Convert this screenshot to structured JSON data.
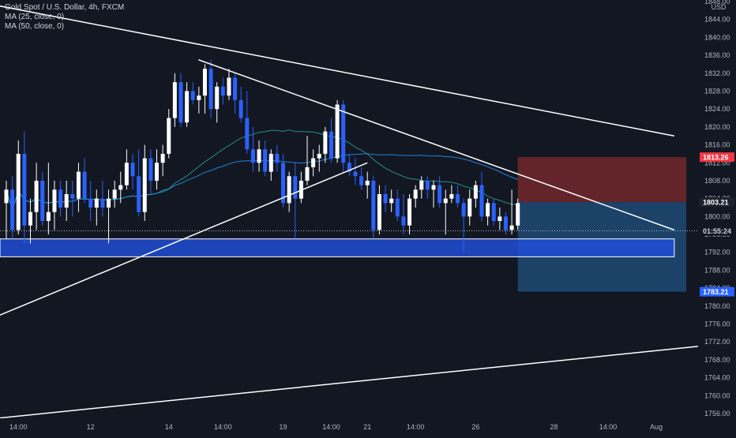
{
  "header": {
    "symbol_title": "Gold Spot / U.S. Dollar, 4h, FXCM",
    "indicators": [
      "MA (25, close, 0)",
      "MA (50, close, 0)"
    ]
  },
  "colors": {
    "background": "#131722",
    "bull_body": "#ffffff",
    "bear_body": "#2962ff",
    "ma25": "#26a69a",
    "ma50": "#2196f3",
    "trendline": "#ffffff",
    "zone_fill": "#2150e0",
    "stop_zone": "#7f2b2e",
    "target_zone": "#1f4e79",
    "price_tag_red": "#f23645",
    "price_tag_blue": "#2962ff",
    "price_tag_dark": "#1e222d"
  },
  "price_axis": {
    "currency": "USD",
    "ticks": [
      "1848.00",
      "1844.00",
      "1840.00",
      "1836.00",
      "1832.00",
      "1828.00",
      "1824.00",
      "1820.00",
      "1816.00",
      "1812.00",
      "1808.00",
      "1804.00",
      "1800.00",
      "1796.00",
      "1792.00",
      "1788.00",
      "1784.00",
      "1780.00",
      "1776.00",
      "1772.00",
      "1768.00",
      "1764.00",
      "1760.00",
      "1756.00"
    ],
    "tags": [
      {
        "label": "1813.26",
        "price": 1813.26,
        "style": "red"
      },
      {
        "label": "1803.21",
        "price": 1803.21,
        "style": "dark"
      },
      {
        "label": "01:55:24",
        "price": 1796.8,
        "style": "countdown"
      },
      {
        "label": "1783.21",
        "price": 1783.21,
        "style": "blue"
      }
    ]
  },
  "time_axis": {
    "ticks": [
      {
        "label": "14:00",
        "bar": 2
      },
      {
        "label": "12",
        "bar": 14
      },
      {
        "label": "14",
        "bar": 27
      },
      {
        "label": "14:00",
        "bar": 36
      },
      {
        "label": "19",
        "bar": 46
      },
      {
        "label": "14:00",
        "bar": 54
      },
      {
        "label": "21",
        "bar": 60
      },
      {
        "label": "14:00",
        "bar": 68
      },
      {
        "label": "26",
        "bar": 78
      },
      {
        "label": "28",
        "bar": 91
      },
      {
        "label": "14:00",
        "bar": 100
      },
      {
        "label": "Aug",
        "bar": 108
      }
    ]
  },
  "chart_data": {
    "type": "candlestick",
    "title": "Gold Spot / U.S. Dollar, 4h, FXCM",
    "ylim": [
      1754,
      1850
    ],
    "price_axis_unit": "USD",
    "last_price": 1803.21,
    "candles": [
      {
        "o": 1803,
        "h": 1808,
        "l": 1795,
        "c": 1806
      },
      {
        "o": 1806,
        "h": 1809,
        "l": 1795,
        "c": 1797
      },
      {
        "o": 1797,
        "h": 1817,
        "l": 1796,
        "c": 1814
      },
      {
        "o": 1814,
        "h": 1819,
        "l": 1794,
        "c": 1798
      },
      {
        "o": 1798,
        "h": 1804,
        "l": 1794,
        "c": 1801
      },
      {
        "o": 1801,
        "h": 1812,
        "l": 1797,
        "c": 1808
      },
      {
        "o": 1808,
        "h": 1810,
        "l": 1798,
        "c": 1799
      },
      {
        "o": 1799,
        "h": 1812,
        "l": 1796,
        "c": 1801
      },
      {
        "o": 1801,
        "h": 1808,
        "l": 1797,
        "c": 1806
      },
      {
        "o": 1806,
        "h": 1808,
        "l": 1800,
        "c": 1802
      },
      {
        "o": 1802,
        "h": 1808,
        "l": 1799,
        "c": 1805
      },
      {
        "o": 1805,
        "h": 1808,
        "l": 1800,
        "c": 1804
      },
      {
        "o": 1804,
        "h": 1812,
        "l": 1801,
        "c": 1810
      },
      {
        "o": 1810,
        "h": 1813,
        "l": 1803,
        "c": 1804
      },
      {
        "o": 1804,
        "h": 1808,
        "l": 1799,
        "c": 1802
      },
      {
        "o": 1802,
        "h": 1806,
        "l": 1798,
        "c": 1804
      },
      {
        "o": 1804,
        "h": 1808,
        "l": 1800,
        "c": 1802
      },
      {
        "o": 1802,
        "h": 1806,
        "l": 1794,
        "c": 1804
      },
      {
        "o": 1804,
        "h": 1808,
        "l": 1802,
        "c": 1806
      },
      {
        "o": 1806,
        "h": 1810,
        "l": 1803,
        "c": 1807
      },
      {
        "o": 1807,
        "h": 1815,
        "l": 1806,
        "c": 1812
      },
      {
        "o": 1812,
        "h": 1814,
        "l": 1806,
        "c": 1809
      },
      {
        "o": 1809,
        "h": 1815,
        "l": 1800,
        "c": 1801
      },
      {
        "o": 1801,
        "h": 1816,
        "l": 1799,
        "c": 1813
      },
      {
        "o": 1813,
        "h": 1815,
        "l": 1805,
        "c": 1808
      },
      {
        "o": 1808,
        "h": 1815,
        "l": 1806,
        "c": 1812
      },
      {
        "o": 1812,
        "h": 1816,
        "l": 1809,
        "c": 1814
      },
      {
        "o": 1814,
        "h": 1824,
        "l": 1813,
        "c": 1822
      },
      {
        "o": 1822,
        "h": 1832,
        "l": 1820,
        "c": 1830
      },
      {
        "o": 1830,
        "h": 1832,
        "l": 1820,
        "c": 1821
      },
      {
        "o": 1821,
        "h": 1830,
        "l": 1820,
        "c": 1828
      },
      {
        "o": 1828,
        "h": 1830,
        "l": 1825,
        "c": 1826
      },
      {
        "o": 1826,
        "h": 1829,
        "l": 1823,
        "c": 1827
      },
      {
        "o": 1827,
        "h": 1834,
        "l": 1823,
        "c": 1833
      },
      {
        "o": 1833,
        "h": 1835,
        "l": 1822,
        "c": 1824
      },
      {
        "o": 1824,
        "h": 1830,
        "l": 1821,
        "c": 1829
      },
      {
        "o": 1829,
        "h": 1831,
        "l": 1825,
        "c": 1827
      },
      {
        "o": 1827,
        "h": 1833,
        "l": 1826,
        "c": 1831
      },
      {
        "o": 1831,
        "h": 1832,
        "l": 1823,
        "c": 1826
      },
      {
        "o": 1826,
        "h": 1829,
        "l": 1821,
        "c": 1822
      },
      {
        "o": 1822,
        "h": 1828,
        "l": 1814,
        "c": 1815
      },
      {
        "o": 1815,
        "h": 1820,
        "l": 1810,
        "c": 1812
      },
      {
        "o": 1812,
        "h": 1817,
        "l": 1810,
        "c": 1815
      },
      {
        "o": 1815,
        "h": 1817,
        "l": 1809,
        "c": 1810
      },
      {
        "o": 1810,
        "h": 1815,
        "l": 1808,
        "c": 1814
      },
      {
        "o": 1814,
        "h": 1816,
        "l": 1810,
        "c": 1812
      },
      {
        "o": 1812,
        "h": 1814,
        "l": 1802,
        "c": 1803
      },
      {
        "o": 1803,
        "h": 1810,
        "l": 1801,
        "c": 1809
      },
      {
        "o": 1809,
        "h": 1812,
        "l": 1795,
        "c": 1804
      },
      {
        "o": 1804,
        "h": 1810,
        "l": 1803,
        "c": 1808
      },
      {
        "o": 1808,
        "h": 1818,
        "l": 1807,
        "c": 1811
      },
      {
        "o": 1811,
        "h": 1815,
        "l": 1809,
        "c": 1813
      },
      {
        "o": 1813,
        "h": 1816,
        "l": 1810,
        "c": 1814
      },
      {
        "o": 1814,
        "h": 1820,
        "l": 1812,
        "c": 1819
      },
      {
        "o": 1819,
        "h": 1822,
        "l": 1812,
        "c": 1813
      },
      {
        "o": 1813,
        "h": 1826,
        "l": 1812,
        "c": 1825
      },
      {
        "o": 1825,
        "h": 1826,
        "l": 1810,
        "c": 1812
      },
      {
        "o": 1812,
        "h": 1814,
        "l": 1809,
        "c": 1810
      },
      {
        "o": 1810,
        "h": 1813,
        "l": 1807,
        "c": 1809
      },
      {
        "o": 1809,
        "h": 1811,
        "l": 1806,
        "c": 1807
      },
      {
        "o": 1807,
        "h": 1810,
        "l": 1804,
        "c": 1808
      },
      {
        "o": 1808,
        "h": 1809,
        "l": 1795,
        "c": 1797
      },
      {
        "o": 1797,
        "h": 1807,
        "l": 1796,
        "c": 1805
      },
      {
        "o": 1805,
        "h": 1807,
        "l": 1801,
        "c": 1803
      },
      {
        "o": 1803,
        "h": 1806,
        "l": 1801,
        "c": 1804
      },
      {
        "o": 1804,
        "h": 1806,
        "l": 1799,
        "c": 1800
      },
      {
        "o": 1800,
        "h": 1805,
        "l": 1796,
        "c": 1798
      },
      {
        "o": 1798,
        "h": 1805,
        "l": 1796,
        "c": 1804
      },
      {
        "o": 1804,
        "h": 1807,
        "l": 1802,
        "c": 1806
      },
      {
        "o": 1806,
        "h": 1809,
        "l": 1804,
        "c": 1808
      },
      {
        "o": 1808,
        "h": 1809,
        "l": 1804,
        "c": 1806
      },
      {
        "o": 1806,
        "h": 1808,
        "l": 1802,
        "c": 1807
      },
      {
        "o": 1807,
        "h": 1809,
        "l": 1802,
        "c": 1803
      },
      {
        "o": 1803,
        "h": 1806,
        "l": 1796,
        "c": 1804
      },
      {
        "o": 1804,
        "h": 1807,
        "l": 1803,
        "c": 1805
      },
      {
        "o": 1805,
        "h": 1807,
        "l": 1802,
        "c": 1803
      },
      {
        "o": 1803,
        "h": 1804,
        "l": 1792,
        "c": 1800
      },
      {
        "o": 1800,
        "h": 1806,
        "l": 1798,
        "c": 1804
      },
      {
        "o": 1804,
        "h": 1808,
        "l": 1802,
        "c": 1807
      },
      {
        "o": 1807,
        "h": 1810,
        "l": 1799,
        "c": 1800
      },
      {
        "o": 1800,
        "h": 1804,
        "l": 1798,
        "c": 1803
      },
      {
        "o": 1803,
        "h": 1804,
        "l": 1798,
        "c": 1799
      },
      {
        "o": 1799,
        "h": 1802,
        "l": 1797,
        "c": 1800
      },
      {
        "o": 1800,
        "h": 1801,
        "l": 1796,
        "c": 1797
      },
      {
        "o": 1797,
        "h": 1806,
        "l": 1796,
        "c": 1798
      },
      {
        "o": 1798,
        "h": 1804,
        "l": 1797,
        "c": 1803
      }
    ],
    "moving_averages": [
      {
        "name": "MA (25, close, 0)",
        "period": 25,
        "color": "#26a69a"
      },
      {
        "name": "MA (50, close, 0)",
        "period": 50,
        "color": "#2196f3"
      }
    ],
    "trendlines": [
      {
        "from": {
          "bar": 0,
          "price": 1847
        },
        "to": {
          "bar": 111,
          "price": 1818
        }
      },
      {
        "from": {
          "bar": 33,
          "price": 1835
        },
        "to": {
          "bar": 111,
          "price": 1797
        }
      },
      {
        "from": {
          "bar": 0,
          "price": 1778
        },
        "to": {
          "bar": 60,
          "price": 1812
        }
      },
      {
        "from": {
          "bar": 0,
          "price": 1755
        },
        "to": {
          "bar": 120,
          "price": 1771
        }
      }
    ],
    "support_zone": {
      "from_bar": 0,
      "to_bar": 111,
      "top": 1795,
      "bottom": 1791
    },
    "position": {
      "from_bar": 85,
      "to_bar": 113,
      "entry": 1803.21,
      "stop": 1813.26,
      "target": 1783.21
    },
    "grid": false
  }
}
